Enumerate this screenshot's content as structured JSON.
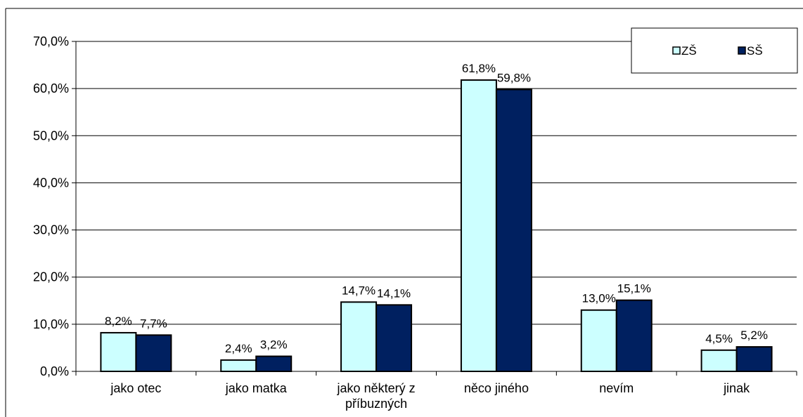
{
  "chart_data": {
    "type": "bar",
    "categories": [
      "jako otec",
      "jako matka",
      "jako některý z příbuzných",
      "něco jiného",
      "nevím",
      "jinak"
    ],
    "category_lines": [
      [
        "jako otec"
      ],
      [
        "jako matka"
      ],
      [
        "jako některý z",
        "příbuzných"
      ],
      [
        "něco jiného"
      ],
      [
        "nevím"
      ],
      [
        "jinak"
      ]
    ],
    "series": [
      {
        "name": "ZŠ",
        "values": [
          8.2,
          2.4,
          14.7,
          61.8,
          13.0,
          4.5
        ],
        "labels": [
          "8,2%",
          "2,4%",
          "14,7%",
          "61,8%",
          "13,0%",
          "4,5%"
        ],
        "color": "#ccffff"
      },
      {
        "name": "SŠ",
        "values": [
          7.7,
          3.2,
          14.1,
          59.8,
          15.1,
          5.2
        ],
        "labels": [
          "7,7%",
          "3,2%",
          "14,1%",
          "59,8%",
          "15,1%",
          "5,2%"
        ],
        "color": "#002060"
      }
    ],
    "ylim": [
      0,
      70
    ],
    "yticks": [
      "0,0%",
      "10,0%",
      "20,0%",
      "30,0%",
      "40,0%",
      "50,0%",
      "60,0%",
      "70,0%"
    ],
    "grid": true,
    "legend_position": "top-right"
  }
}
